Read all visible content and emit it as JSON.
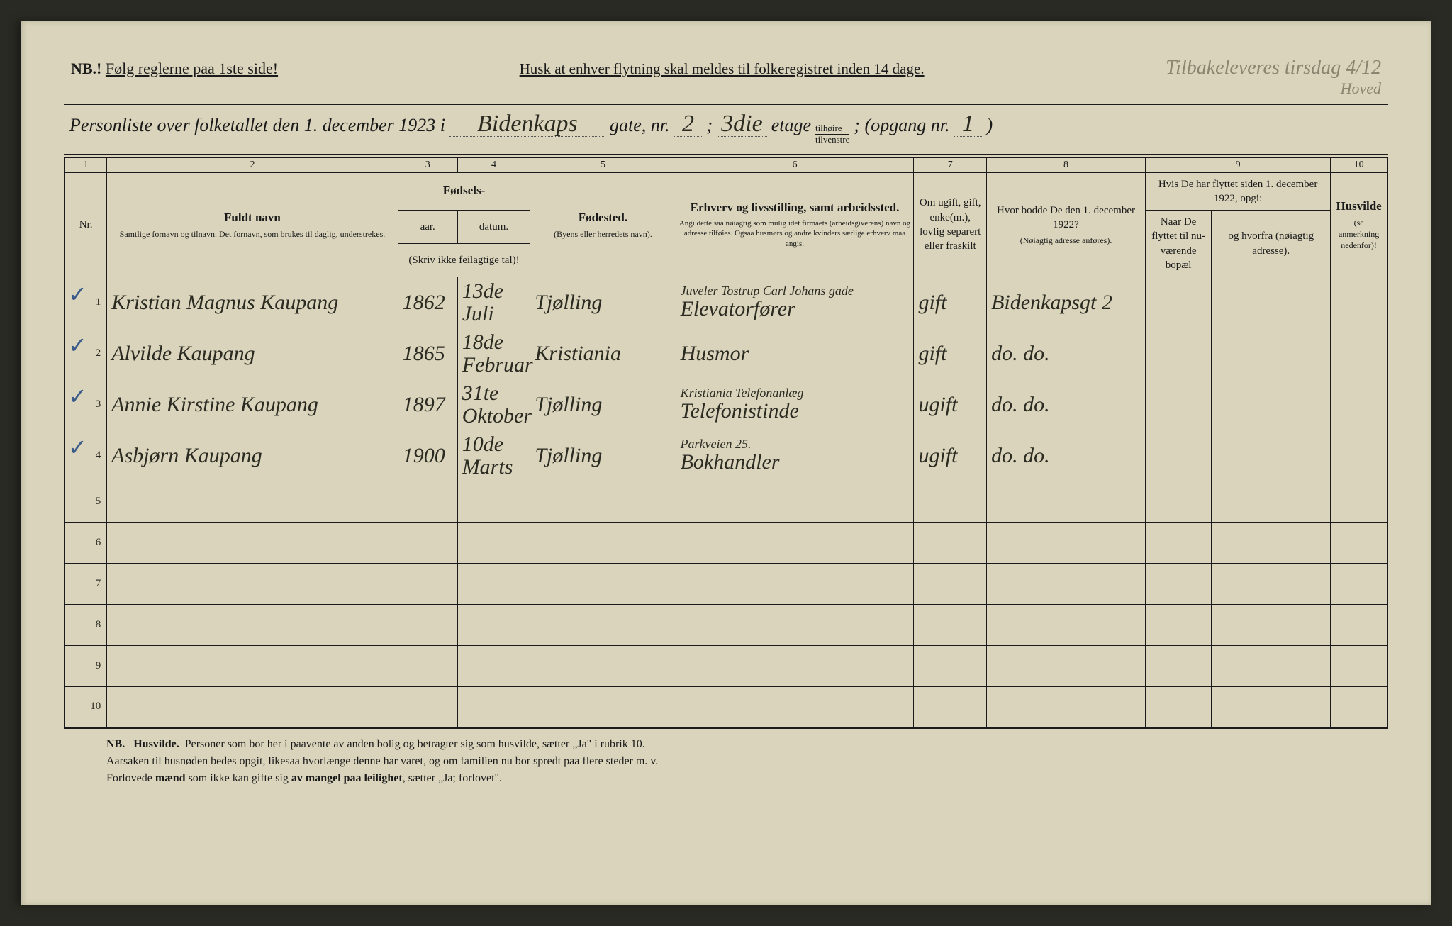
{
  "colors": {
    "paper": "#d9d4bb",
    "ink": "#1a1a1a",
    "handwriting": "#2b2b22",
    "pencil": "#8a8570",
    "checkmark": "#3a5a8a",
    "page_bg": "#2a2a24"
  },
  "header": {
    "nb_prefix": "NB.!",
    "nb_text": "Følg reglerne paa 1ste side!",
    "reminder": "Husk at enhver flytning skal meldes til folkeregistret inden 14 dage.",
    "pencil_top": "Tilbakeleveres tirsdag 4/12",
    "pencil_sub": "Hoved"
  },
  "title": {
    "prefix": "Personliste over folketallet den 1. december 1923 i",
    "street": "Bidenkaps",
    "gate_label": "gate, nr.",
    "gate_nr": "2",
    "semicolon": ";",
    "etage_val": "3die",
    "etage_label": "etage",
    "side_top_strike": "tilhøire",
    "side_bottom": "tilvenstre",
    "opgang_label": "; (opgang nr.",
    "opgang_val": "1",
    "close": ")"
  },
  "columns": {
    "widths_pct": [
      3.2,
      22,
      4.5,
      5.5,
      11,
      18,
      5.5,
      12,
      5,
      9,
      4.3
    ],
    "nums": [
      "1",
      "2",
      "3",
      "4",
      "5",
      "6",
      "7",
      "8",
      "9",
      "",
      "10"
    ],
    "nr": "Nr.",
    "name_head": "Fuldt navn",
    "name_sub": "Samtlige fornavn og tilnavn. Det fornavn, som brukes til daglig, understrekes.",
    "birth_head": "Fødsels-",
    "birth_year": "aar.",
    "birth_date": "datum.",
    "birth_note": "(Skriv ikke feilagtige tal)!",
    "place_head": "Fødested.",
    "place_sub": "(Byens eller herredets navn).",
    "occ_head": "Erhverv og livsstilling, samt arbeidssted.",
    "occ_sub": "Angi dette saa nøiagtig som mulig idet firmaets (arbeidsgiverens) navn og adresse tilføies. Ogsaa husmørs og andre kvinders særlige erhverv maa angis.",
    "marital": "Om ugift, gift, enke(m.), lovlig separert eller fraskilt",
    "addr1922_head": "Hvor bodde De den 1. december 1922?",
    "addr1922_sub": "(Nøiagtig adresse anføres).",
    "moved_head": "Hvis De har flyttet siden 1. december 1922, opgi:",
    "moved_when": "Naar De flyttet til nu-værende bopæl",
    "moved_from": "og hvorfra (nøiagtig adresse).",
    "husvilde": "Husvilde",
    "husvilde_sub": "(se anmerkning nedenfor)!"
  },
  "rows": [
    {
      "check": "✓",
      "nr": "1",
      "name": "Kristian Magnus Kaupang",
      "year": "1862",
      "date": "13de Juli",
      "place": "Tjølling",
      "occ_top": "Juveler Tostrup Carl Johans gade",
      "occ": "Elevatorfører",
      "marital": "gift",
      "addr1922": "Bidenkapsgt 2",
      "moved_when": "",
      "moved_from": "",
      "husvilde": ""
    },
    {
      "check": "✓",
      "nr": "2",
      "name": "Alvilde Kaupang",
      "year": "1865",
      "date": "18de Februar",
      "place": "Kristiania",
      "occ_top": "",
      "occ": "Husmor",
      "marital": "gift",
      "addr1922": "do. do.",
      "moved_when": "",
      "moved_from": "",
      "husvilde": ""
    },
    {
      "check": "✓",
      "nr": "3",
      "name": "Annie Kirstine Kaupang",
      "year": "1897",
      "date": "31te Oktober",
      "place": "Tjølling",
      "occ_top": "Kristiania Telefonanlæg",
      "occ": "Telefonistinde",
      "marital": "ugift",
      "addr1922": "do. do.",
      "moved_when": "",
      "moved_from": "",
      "husvilde": ""
    },
    {
      "check": "✓",
      "nr": "4",
      "name": "Asbjørn Kaupang",
      "year": "1900",
      "date": "10de Marts",
      "place": "Tjølling",
      "occ_top": "Parkveien 25.",
      "occ": "Bokhandler",
      "marital": "ugift",
      "addr1922": "do. do.",
      "moved_when": "",
      "moved_from": "",
      "husvilde": ""
    }
  ],
  "empty_row_numbers": [
    "5",
    "6",
    "7",
    "8",
    "9",
    "10"
  ],
  "footer": {
    "line1_b1": "NB.",
    "line1_b2": "Husvilde.",
    "line1": "Personer som bor her i paavente av anden bolig og betragter sig som husvilde, sætter „Ja\" i rubrik 10.",
    "line2": "Aarsaken til husnøden bedes opgit, likesaa hvorlænge denne har varet, og om familien nu bor spredt paa flere steder m. v.",
    "line3a": "Forlovede ",
    "line3b": "mænd",
    "line3c": " som ikke kan gifte sig ",
    "line3d": "av mangel paa leilighet",
    "line3e": ", sætter „Ja; forlovet\"."
  }
}
